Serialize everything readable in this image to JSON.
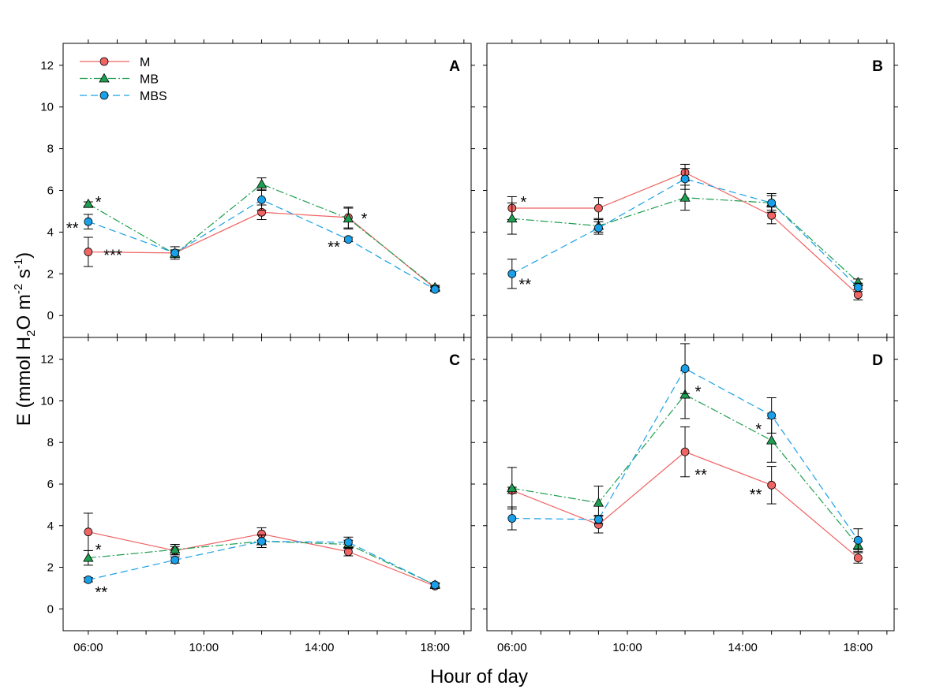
{
  "chart_data": {
    "type": "line",
    "ylabel": "E (mmol H2O m-2 s-1)",
    "ylabel_parts": {
      "pre": "E (mmol H",
      "sub": "2",
      "mid": "O m",
      "sup1": "-2",
      "mid2": " s",
      "sup2": "-1",
      "post": ")"
    },
    "xlabel": "Hour of day",
    "x_ticks": [
      "06:00",
      "10:00",
      "14:00",
      "18:00"
    ],
    "x_tick_hours": [
      6,
      10,
      14,
      18
    ],
    "y_ticks": [
      0,
      2,
      4,
      6,
      8,
      10,
      12
    ],
    "xlim_hours": [
      5.13,
      19.25
    ],
    "ylim": [
      -1.05,
      13.05
    ],
    "x_hours": [
      6,
      9,
      12,
      15,
      18
    ],
    "legend": {
      "placement": "top-left",
      "panel": "A"
    },
    "series_style": [
      {
        "name": "M",
        "color": "#f06464",
        "marker": "circle",
        "line": "solid"
      },
      {
        "name": "MB",
        "color": "#1e9e50",
        "marker": "triangle",
        "line": "dash-dot"
      },
      {
        "name": "MBS",
        "color": "#1aa0e8",
        "marker": "circle",
        "line": "dashed"
      }
    ],
    "panels": [
      {
        "label": "A",
        "series": [
          {
            "name": "M",
            "values": [
              3.05,
              3.0,
              4.95,
              4.7,
              1.3
            ],
            "errors": [
              0.7,
              0.15,
              0.35,
              0.5,
              0.1
            ]
          },
          {
            "name": "MB",
            "values": [
              5.35,
              2.95,
              6.3,
              4.65,
              1.35
            ],
            "errors": [
              0.1,
              0.15,
              0.3,
              0.5,
              0.1
            ]
          },
          {
            "name": "MBS",
            "values": [
              4.5,
              3.0,
              5.55,
              3.65,
              1.25
            ],
            "errors": [
              0.35,
              0.3,
              0.5,
              0.1,
              0.1
            ]
          }
        ],
        "annotations": [
          {
            "text": "*",
            "x": 6.35,
            "y": 5.6
          },
          {
            "text": "**",
            "x": 5.45,
            "y": 4.35
          },
          {
            "text": "***",
            "x": 6.85,
            "y": 3.05
          },
          {
            "text": "*",
            "x": 15.55,
            "y": 4.8
          },
          {
            "text": "**",
            "x": 14.5,
            "y": 3.45
          }
        ]
      },
      {
        "label": "B",
        "series": [
          {
            "name": "M",
            "values": [
              5.15,
              5.15,
              6.85,
              4.8,
              1.0
            ],
            "errors": [
              0.55,
              0.5,
              0.4,
              0.4,
              0.25
            ]
          },
          {
            "name": "MB",
            "values": [
              4.65,
              4.3,
              5.65,
              5.4,
              1.6
            ],
            "errors": [
              0.75,
              0.3,
              0.6,
              0.35,
              0.15
            ]
          },
          {
            "name": "MBS",
            "values": [
              2.0,
              4.2,
              6.55,
              5.4,
              1.35
            ],
            "errors": [
              0.7,
              0.3,
              0.5,
              0.45,
              0.2
            ]
          }
        ],
        "annotations": [
          {
            "text": "*",
            "x": 6.4,
            "y": 5.6
          },
          {
            "text": "**",
            "x": 6.45,
            "y": 1.65
          }
        ]
      },
      {
        "label": "C",
        "series": [
          {
            "name": "M",
            "values": [
              3.7,
              2.8,
              3.6,
              2.75,
              1.1
            ],
            "errors": [
              0.9,
              0.2,
              0.3,
              0.2,
              0.1
            ]
          },
          {
            "name": "MB",
            "values": [
              2.45,
              2.85,
              3.25,
              3.1,
              1.15
            ],
            "errors": [
              0.35,
              0.25,
              0.3,
              0.2,
              0.1
            ]
          },
          {
            "name": "MBS",
            "values": [
              1.4,
              2.35,
              3.25,
              3.2,
              1.15
            ],
            "errors": [
              0.1,
              0.15,
              0.3,
              0.25,
              0.1
            ]
          }
        ],
        "annotations": [
          {
            "text": "*",
            "x": 6.35,
            "y": 3.0
          },
          {
            "text": "**",
            "x": 6.45,
            "y": 0.95
          }
        ]
      },
      {
        "label": "D",
        "series": [
          {
            "name": "M",
            "values": [
              5.7,
              4.05,
              7.55,
              5.95,
              2.45
            ],
            "errors": [
              0.15,
              0.4,
              1.2,
              0.9,
              0.25
            ]
          },
          {
            "name": "MB",
            "values": [
              5.8,
              5.1,
              10.3,
              8.1,
              3.05
            ],
            "errors": [
              1.0,
              0.8,
              1.15,
              1.05,
              0.2
            ]
          },
          {
            "name": "MBS",
            "values": [
              4.35,
              4.3,
              11.55,
              9.3,
              3.3
            ],
            "errors": [
              0.55,
              0.2,
              1.2,
              0.85,
              0.55
            ]
          }
        ],
        "annotations": [
          {
            "text": "*",
            "x": 12.45,
            "y": 10.6
          },
          {
            "text": "**",
            "x": 12.55,
            "y": 6.6
          },
          {
            "text": "*",
            "x": 14.55,
            "y": 8.8
          },
          {
            "text": "**",
            "x": 14.45,
            "y": 5.65
          }
        ]
      }
    ]
  }
}
